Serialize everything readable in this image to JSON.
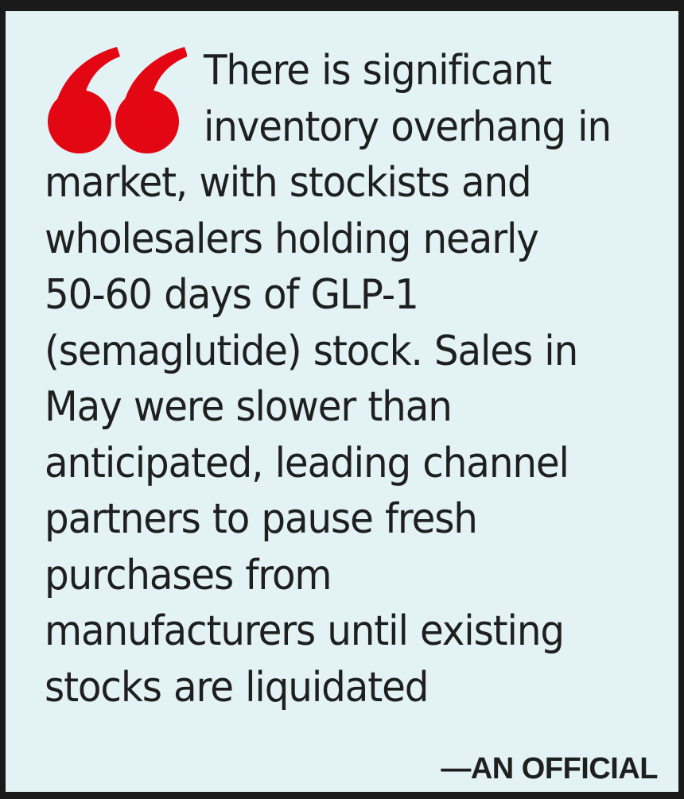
{
  "quote": {
    "mark_color": "#e30613",
    "lines": [
      "There is significant",
      "inventory overhang in",
      "market, with stockists and",
      "wholesalers holding nearly",
      "50-60 days of GLP-1",
      "(semaglutide) stock. Sales in",
      "May were slower than",
      "anticipated, leading channel",
      "partners to pause fresh",
      "purchases from",
      "manufacturers until existing",
      "stocks are liquidated"
    ],
    "attribution": "—AN OFFICIAL"
  }
}
